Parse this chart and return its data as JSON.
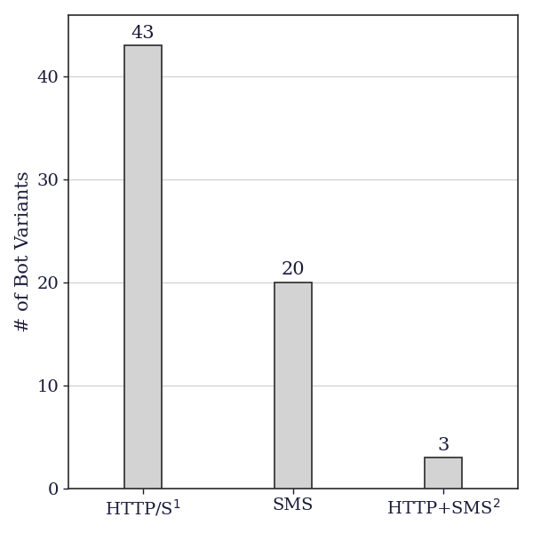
{
  "categories": [
    "HTTP/S$^1$",
    "SMS",
    "HTTP+SMS$^2$"
  ],
  "values": [
    43,
    20,
    3
  ],
  "bar_color": "#d3d3d3",
  "bar_edgecolor": "#2a2a2a",
  "ylabel": "# of Bot Variants",
  "ylim": [
    0,
    46
  ],
  "yticks": [
    0,
    10,
    20,
    30,
    40
  ],
  "bar_width": 0.25,
  "label_fontsize": 15,
  "tick_fontsize": 14,
  "value_label_fontsize": 15,
  "background_color": "#ffffff",
  "grid_color": "#cccccc",
  "text_color": "#1a1a3a"
}
